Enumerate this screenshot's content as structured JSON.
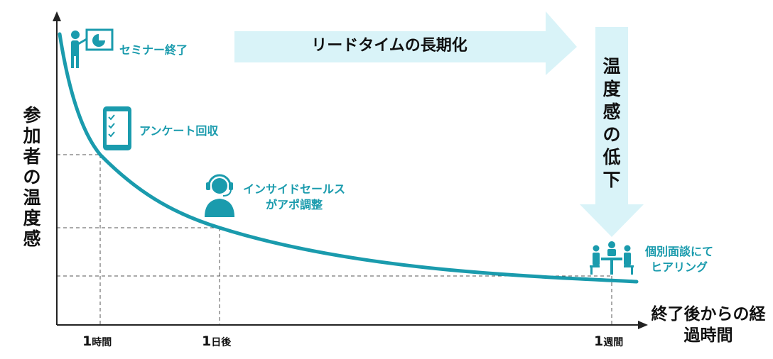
{
  "axes": {
    "y_title": "参加者の温度感",
    "x_title": "終了後からの経過時間",
    "ticks": [
      {
        "num": "1",
        "unit": "時間"
      },
      {
        "num": "1",
        "unit": "日後"
      },
      {
        "num": "1",
        "unit": "週間"
      }
    ]
  },
  "banner": {
    "text": "リードタイムの長期化"
  },
  "down_arrow": {
    "text": "温度感の低下"
  },
  "milestones": [
    {
      "line1": "セミナー終了",
      "line2": "",
      "icon": "presenter-icon"
    },
    {
      "line1": "アンケート回収",
      "line2": "",
      "icon": "tablet-checklist-icon"
    },
    {
      "line1": "インサイドセールス",
      "line2": "がアポ調整",
      "icon": "headset-operator-icon"
    },
    {
      "line1": "個別面談にて",
      "line2": "ヒアリング",
      "icon": "meeting-table-icon"
    }
  ],
  "colors": {
    "curve": "#1a9bad",
    "label": "#1a9bad",
    "arrow_fill": "#d9f3f8",
    "axis": "#222222",
    "guide": "#555555"
  }
}
